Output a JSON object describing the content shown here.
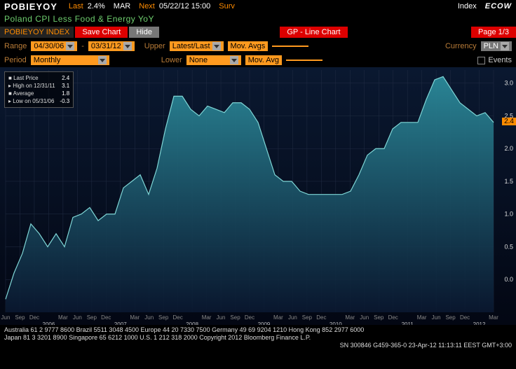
{
  "header": {
    "ticker": "POBIEYOY",
    "last_label": "Last",
    "last_value": "2.4%",
    "month": "MAR",
    "next_label": "Next",
    "next_value": "05/22/12 15:00",
    "surv": "Surv",
    "index_label": "Index",
    "ecow": "ECOW",
    "desc": "Poland CPI Less Food & Energy YoY"
  },
  "toolbar": {
    "index": "POBIEYOY INDEX",
    "save": "Save Chart",
    "hide": "Hide",
    "gp": "GP - Line Chart",
    "page": "Page 1/3"
  },
  "config": {
    "range_label": "Range",
    "date_from": "04/30/06",
    "date_to": "03/31/12",
    "upper_label": "Upper",
    "upper_value": "Latest/Last",
    "movavgs_label": "Mov. Avgs",
    "currency_label": "Currency",
    "currency_value": "PLN",
    "period_label": "Period",
    "period_value": "Monthly",
    "lower_label": "Lower",
    "lower_value": "None",
    "movavg_label": "Mov. Avg",
    "events_label": "Events"
  },
  "legend": {
    "last_price_lbl": "Last Price",
    "last_price_val": "2.4",
    "high_lbl": "High on 12/31/11",
    "high_val": "3.1",
    "avg_lbl": "Average",
    "avg_val": "1.8",
    "low_lbl": "Low on 05/31/06",
    "low_val": "-0.3"
  },
  "chart": {
    "type": "area",
    "background_color": "#0a1830",
    "line_color": "#7fd6d6",
    "fill_top": "#2b8a9a",
    "fill_bottom": "#0a1830",
    "grid_color": "#222d44",
    "ylim": [
      -0.5,
      3.2
    ],
    "yticks": [
      0.0,
      0.5,
      1.0,
      1.5,
      2.0,
      2.5,
      3.0
    ],
    "marker_value": 2.4,
    "xlabels": [
      "Jun",
      "Sep",
      "Dec",
      "2006",
      "Mar",
      "Jun",
      "Sep",
      "Dec",
      "2007",
      "Mar",
      "Jun",
      "Sep",
      "Dec",
      "2008",
      "Mar",
      "Jun",
      "Sep",
      "Dec",
      "2009",
      "Mar",
      "Jun",
      "Sep",
      "Dec",
      "2010",
      "Mar",
      "Jun",
      "Sep",
      "Dec",
      "2011",
      "Mar",
      "Jun",
      "Sep",
      "Dec",
      "2012",
      "Mar"
    ],
    "series": [
      -0.3,
      0.1,
      0.4,
      0.85,
      0.7,
      0.5,
      0.7,
      0.5,
      0.95,
      1.0,
      1.1,
      0.9,
      1.0,
      1.0,
      1.4,
      1.5,
      1.6,
      1.3,
      1.7,
      2.3,
      2.8,
      2.8,
      2.6,
      2.5,
      2.65,
      2.6,
      2.55,
      2.7,
      2.7,
      2.6,
      2.4,
      2.0,
      1.6,
      1.5,
      1.5,
      1.35,
      1.3,
      1.3,
      1.3,
      1.3,
      1.3,
      1.35,
      1.6,
      1.9,
      2.0,
      2.0,
      2.3,
      2.4,
      2.4,
      2.4,
      2.75,
      3.05,
      3.1,
      2.9,
      2.7,
      2.6,
      2.5,
      2.55,
      2.4
    ]
  },
  "footer": {
    "line1": "Australia 61 2 9777 8600 Brazil 5511 3048 4500 Europe 44 20 7330 7500 Germany 49 69 9204 1210 Hong Kong 852 2977 6000",
    "line2": "Japan 81 3 3201 8900       Singapore 65 6212 1000       U.S. 1 212 318 2000          Copyright 2012 Bloomberg Finance L.P.",
    "line3": "SN 300846 G459-365-0 23-Apr-12 11:13:11 EEST GMT+3:00"
  }
}
